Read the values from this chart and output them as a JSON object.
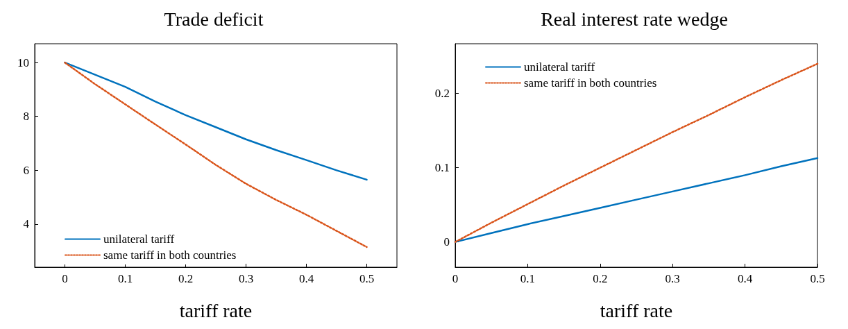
{
  "chart_data": [
    {
      "type": "line",
      "title": "Trade deficit",
      "xlabel": "tariff rate",
      "x": [
        0,
        0.05,
        0.1,
        0.15,
        0.2,
        0.25,
        0.3,
        0.35,
        0.4,
        0.45,
        0.5
      ],
      "series": [
        {
          "name": "unilateral tariff",
          "color": "#0072bd",
          "line_style": "solid",
          "values": [
            10,
            9.55,
            9.1,
            8.55,
            8.05,
            7.6,
            7.15,
            6.75,
            6.38,
            6.0,
            5.65
          ]
        },
        {
          "name": "same tariff in both countries",
          "color": "#d95319",
          "line_style": "dotted",
          "values": [
            10,
            9.2,
            8.45,
            7.7,
            6.96,
            6.2,
            5.5,
            4.9,
            4.35,
            3.75,
            3.15
          ]
        }
      ],
      "xlim": [
        -0.05,
        0.55
      ],
      "xticks": [
        0,
        0.1,
        0.2,
        0.3,
        0.4,
        0.5
      ],
      "ylim": [
        2.4,
        10.7
      ],
      "yticks": [
        4,
        6,
        8,
        10
      ],
      "grid": false,
      "legend": "bottom left",
      "marker": "none"
    },
    {
      "type": "line",
      "title": "Real interest rate wedge",
      "xlabel": "tariff rate",
      "x": [
        0,
        0.05,
        0.1,
        0.15,
        0.2,
        0.25,
        0.3,
        0.35,
        0.4,
        0.45,
        0.5
      ],
      "series": [
        {
          "name": "unilateral tariff",
          "color": "#0072bd",
          "line_style": "solid",
          "values": [
            0,
            0.012,
            0.024,
            0.035,
            0.046,
            0.057,
            0.068,
            0.079,
            0.09,
            0.102,
            0.113
          ]
        },
        {
          "name": "same tariff in both countries",
          "color": "#d95319",
          "line_style": "dotted",
          "values": [
            0,
            0.026,
            0.051,
            0.076,
            0.1,
            0.124,
            0.148,
            0.171,
            0.195,
            0.218,
            0.24
          ]
        }
      ],
      "xlim": [
        0,
        0.5
      ],
      "xticks": [
        0,
        0.1,
        0.2,
        0.3,
        0.4,
        0.5
      ],
      "ylim": [
        -0.034,
        0.267
      ],
      "yticks": [
        0,
        0.1,
        0.2
      ],
      "grid": false,
      "legend": "top left",
      "marker": "none"
    }
  ]
}
